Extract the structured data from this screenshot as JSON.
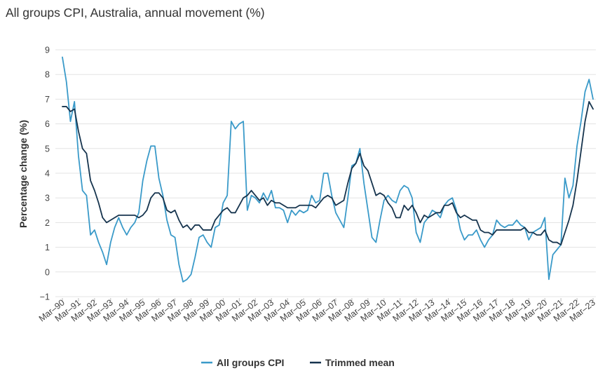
{
  "chart_data": {
    "type": "line",
    "title": "All groups CPI, Australia, annual movement (%)",
    "xlabel": "",
    "ylabel": "Percentage change (%)",
    "ylim": [
      -1,
      9
    ],
    "yticks": [
      -1,
      0,
      1,
      2,
      3,
      4,
      5,
      6,
      7,
      8,
      9
    ],
    "grid": true,
    "legend_position": "bottom-center",
    "x_tick_labels": [
      "Mar–90",
      "Mar–91",
      "Mar–92",
      "Mar–93",
      "Mar–94",
      "Mar–95",
      "Mar–96",
      "Mar–97",
      "Mar–98",
      "Mar–99",
      "Mar–00",
      "Mar–01",
      "Mar–02",
      "Mar–03",
      "Mar–04",
      "Mar–05",
      "Mar–06",
      "Mar–07",
      "Mar–08",
      "Mar–09",
      "Mar–10",
      "Mar–11",
      "Mar–12",
      "Mar–13",
      "Mar–14",
      "Mar–15",
      "Mar–16",
      "Mar–17",
      "Mar–18",
      "Mar–19",
      "Mar–20",
      "Mar–21",
      "Mar–22",
      "Mar–23"
    ],
    "series": [
      {
        "name": "All groups CPI",
        "color": "#3a9ac9",
        "values": [
          8.7,
          7.7,
          6.1,
          6.9,
          4.7,
          3.3,
          3.1,
          1.5,
          1.7,
          1.2,
          0.8,
          0.3,
          1.2,
          1.8,
          2.2,
          1.8,
          1.5,
          1.8,
          2.0,
          2.4,
          3.7,
          4.5,
          5.1,
          5.1,
          3.8,
          3.1,
          2.1,
          1.5,
          1.4,
          0.3,
          -0.4,
          -0.3,
          -0.1,
          0.6,
          1.4,
          1.5,
          1.2,
          1.0,
          1.8,
          1.9,
          2.8,
          3.1,
          6.1,
          5.8,
          6.0,
          6.1,
          2.5,
          3.1,
          3.0,
          2.8,
          3.2,
          2.9,
          3.3,
          2.6,
          2.6,
          2.5,
          2.0,
          2.5,
          2.3,
          2.5,
          2.4,
          2.5,
          3.1,
          2.8,
          2.9,
          4.0,
          4.0,
          3.1,
          2.4,
          2.1,
          1.8,
          3.0,
          4.3,
          4.4,
          5.0,
          3.6,
          2.5,
          1.4,
          1.2,
          2.1,
          2.9,
          3.1,
          2.9,
          2.8,
          3.3,
          3.5,
          3.4,
          3.0,
          1.6,
          1.2,
          2.0,
          2.2,
          2.5,
          2.4,
          2.2,
          2.7,
          2.9,
          3.0,
          2.5,
          1.7,
          1.3,
          1.5,
          1.5,
          1.7,
          1.3,
          1.0,
          1.3,
          1.5,
          2.1,
          1.9,
          1.8,
          1.9,
          1.9,
          2.1,
          1.9,
          1.8,
          1.3,
          1.6,
          1.7,
          1.8,
          2.2,
          -0.3,
          0.7,
          0.9,
          1.1,
          3.8,
          3.0,
          3.5,
          5.1,
          6.1,
          7.3,
          7.8,
          7.0
        ]
      },
      {
        "name": "Trimmed mean",
        "color": "#16344e",
        "values": [
          6.7,
          6.7,
          6.5,
          6.6,
          5.7,
          5.0,
          4.8,
          3.7,
          3.3,
          2.8,
          2.2,
          2.0,
          2.1,
          2.2,
          2.3,
          2.3,
          2.3,
          2.3,
          2.3,
          2.2,
          2.3,
          2.5,
          3.0,
          3.2,
          3.2,
          3.0,
          2.5,
          2.4,
          2.5,
          2.1,
          1.8,
          1.9,
          1.7,
          1.9,
          1.9,
          1.7,
          1.7,
          1.7,
          2.1,
          2.3,
          2.5,
          2.6,
          2.4,
          2.4,
          2.7,
          3.0,
          3.1,
          3.3,
          3.1,
          2.9,
          3.0,
          2.7,
          2.9,
          2.8,
          2.8,
          2.7,
          2.6,
          2.6,
          2.6,
          2.7,
          2.7,
          2.7,
          2.7,
          2.6,
          2.8,
          3.0,
          3.1,
          3.0,
          2.7,
          2.8,
          2.9,
          3.6,
          4.2,
          4.4,
          4.8,
          4.3,
          4.1,
          3.6,
          3.1,
          3.2,
          3.1,
          2.8,
          2.6,
          2.2,
          2.2,
          2.7,
          2.5,
          2.7,
          2.4,
          2.0,
          2.3,
          2.2,
          2.3,
          2.4,
          2.4,
          2.7,
          2.7,
          2.8,
          2.4,
          2.2,
          2.3,
          2.2,
          2.1,
          2.1,
          1.7,
          1.6,
          1.6,
          1.5,
          1.7,
          1.7,
          1.7,
          1.7,
          1.7,
          1.7,
          1.7,
          1.8,
          1.6,
          1.6,
          1.5,
          1.5,
          1.7,
          1.3,
          1.2,
          1.2,
          1.1,
          1.6,
          2.1,
          2.7,
          3.7,
          4.9,
          6.1,
          6.9,
          6.6
        ]
      }
    ]
  }
}
